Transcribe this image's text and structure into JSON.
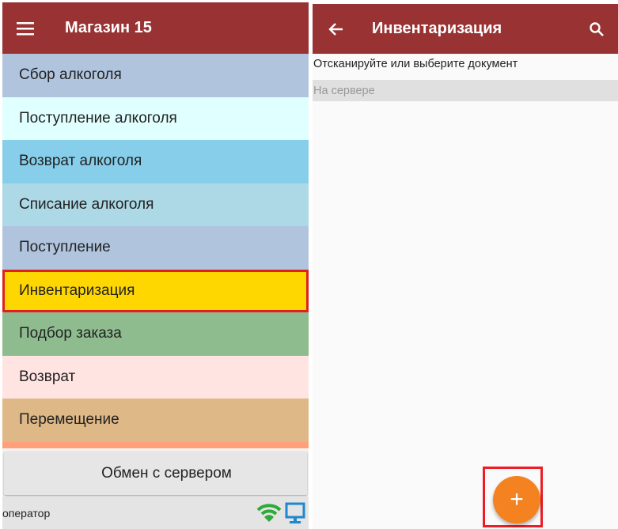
{
  "left": {
    "header": {
      "title": "Магазин 15",
      "menu_icon": "hamburger-icon",
      "color": "#993333"
    },
    "menu": [
      {
        "label": "Сбор алкоголя",
        "color": "#b0c4de"
      },
      {
        "label": "Поступление алкоголя",
        "color": "#e0ffff"
      },
      {
        "label": "Возврат алкоголя",
        "color": "#87ceeb"
      },
      {
        "label": "Списание алкоголя",
        "color": "#add8e6"
      },
      {
        "label": "Поступление",
        "color": "#b0c4de"
      },
      {
        "label": "Инвентаризация",
        "color": "#ffd700",
        "selected": true
      },
      {
        "label": "Подбор заказа",
        "color": "#8fbc8f"
      },
      {
        "label": "Возврат",
        "color": "#ffe4e1"
      },
      {
        "label": "Перемещение",
        "color": "#deb887"
      }
    ],
    "sync_button": "Обмен с сервером",
    "status": {
      "user": "оператор",
      "wifi_icon": "wifi-icon",
      "monitor_icon": "monitor-icon"
    }
  },
  "right": {
    "header": {
      "title": "Инвентаризация",
      "back_icon": "arrow-left-icon",
      "search_icon": "search-icon"
    },
    "prompt": "Отсканируйте или выберите документ",
    "section": "На сервере",
    "fab": {
      "label": "+",
      "color": "#f58220"
    }
  }
}
